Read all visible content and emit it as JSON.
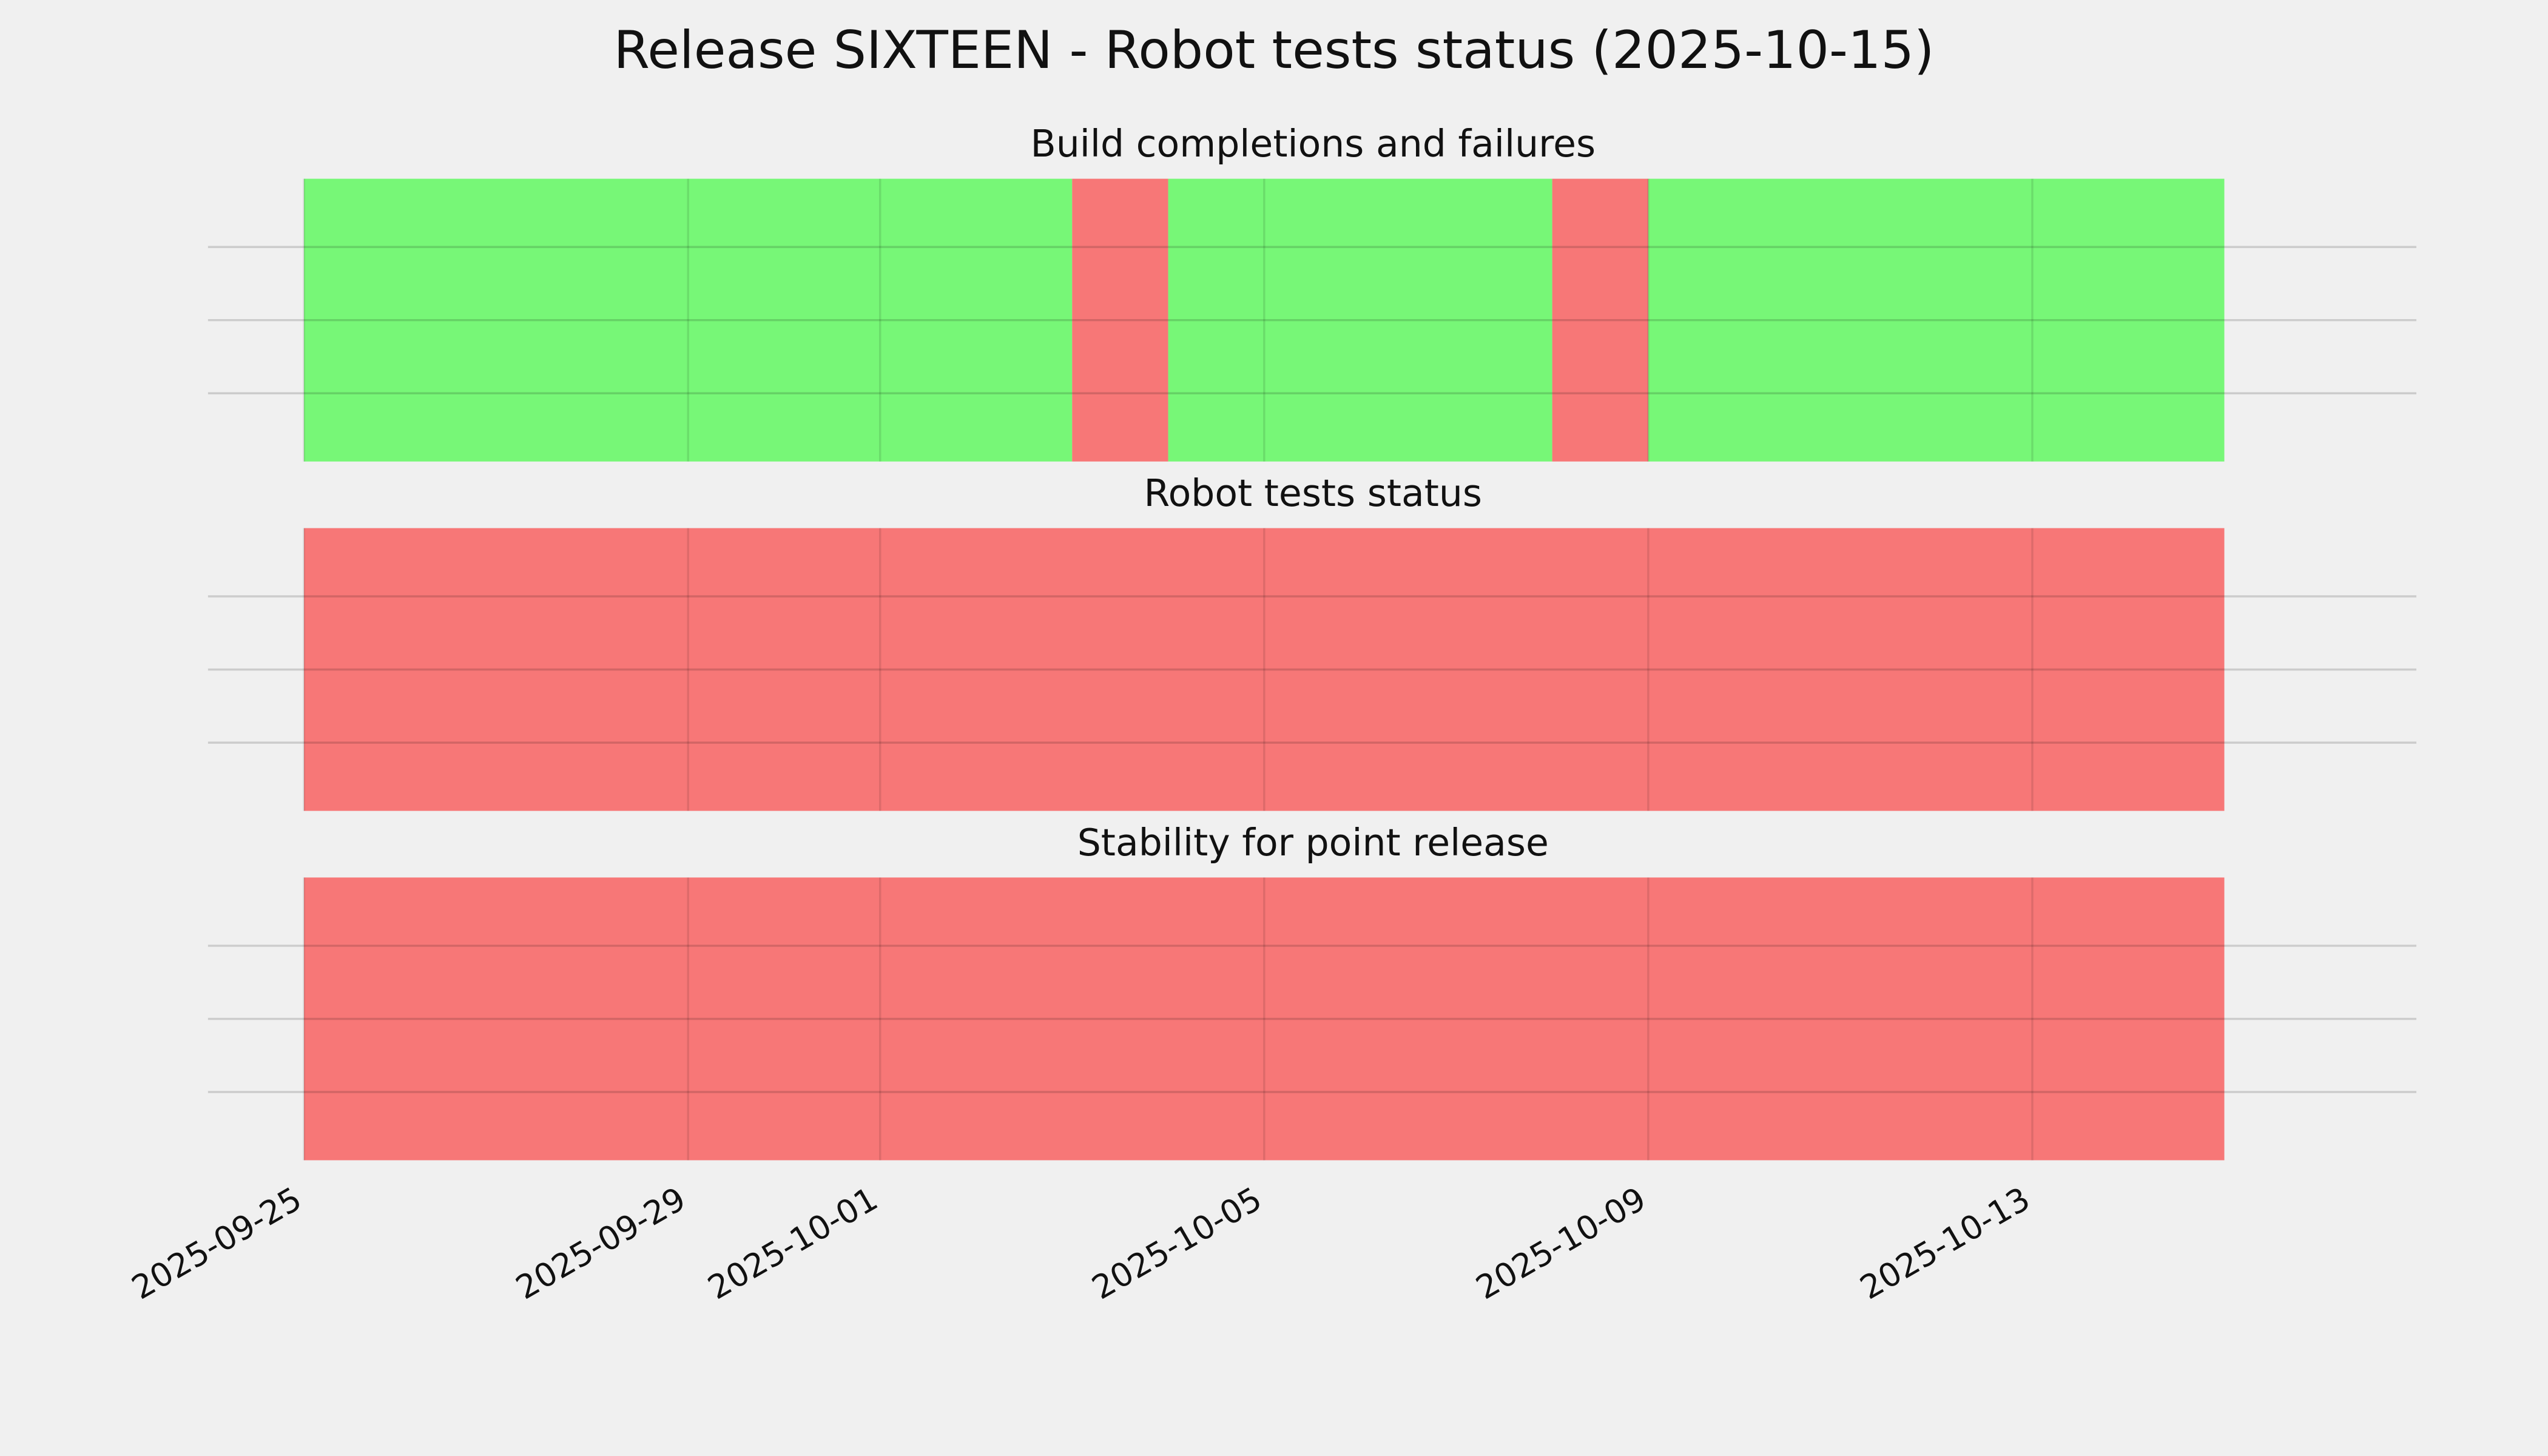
{
  "title": "Release SIXTEEN - Robot tests status (2025-10-15)",
  "chart_data": [
    {
      "type": "timeline",
      "title": "Build completions and failures",
      "xlim": [
        "2025-09-24",
        "2025-10-17"
      ],
      "xticks": [
        "2025-09-25",
        "2025-09-29",
        "2025-10-01",
        "2025-10-05",
        "2025-10-09",
        "2025-10-13"
      ],
      "grid": true,
      "spans": [
        {
          "start": "2025-09-25",
          "end": "2025-10-03",
          "color": "#77f777"
        },
        {
          "start": "2025-10-03",
          "end": "2025-10-04",
          "color": "#f77777"
        },
        {
          "start": "2025-10-04",
          "end": "2025-10-08",
          "color": "#77f777"
        },
        {
          "start": "2025-10-08",
          "end": "2025-10-09",
          "color": "#f77777"
        },
        {
          "start": "2025-10-09",
          "end": "2025-10-15",
          "color": "#77f777"
        }
      ]
    },
    {
      "type": "timeline",
      "title": "Robot tests status",
      "xlim": [
        "2025-09-24",
        "2025-10-17"
      ],
      "xticks": [
        "2025-09-25",
        "2025-09-29",
        "2025-10-01",
        "2025-10-05",
        "2025-10-09",
        "2025-10-13"
      ],
      "grid": true,
      "spans": [
        {
          "start": "2025-09-25",
          "end": "2025-10-15",
          "color": "#f77777"
        }
      ]
    },
    {
      "type": "timeline",
      "title": "Stability for point release",
      "xlim": [
        "2025-09-24",
        "2025-10-17"
      ],
      "xticks": [
        "2025-09-25",
        "2025-09-29",
        "2025-10-01",
        "2025-10-05",
        "2025-10-09",
        "2025-10-13"
      ],
      "grid": true,
      "spans": [
        {
          "start": "2025-09-25",
          "end": "2025-10-15",
          "color": "#f77777"
        }
      ]
    }
  ]
}
